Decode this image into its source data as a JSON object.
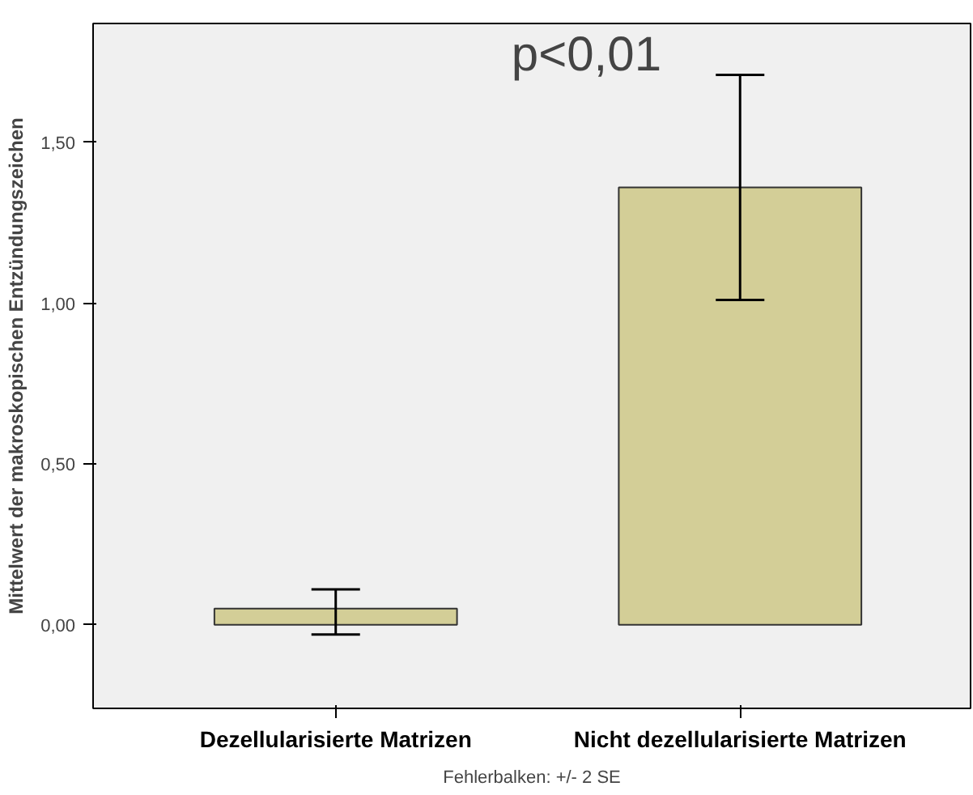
{
  "chart_data": {
    "type": "bar",
    "ylabel": "Mittelwert der makroskopischen Entzündungszeichen",
    "categories": [
      "Dezellularisierte Matrizen",
      "Nicht dezellularisierte Matrizen"
    ],
    "values": [
      0.05,
      1.36
    ],
    "errors": [
      [
        -0.03,
        0.11
      ],
      [
        1.01,
        1.71
      ]
    ],
    "color": "#d3ce97",
    "ylim": [
      -0.26,
      1.87
    ],
    "yticks": [
      {
        "value": 0,
        "label": "0,00"
      },
      {
        "value": 0.5,
        "label": "0,50"
      },
      {
        "value": 1,
        "label": "1,00"
      },
      {
        "value": 1.5,
        "label": "1,50"
      }
    ],
    "grid": false,
    "annotations": [
      "p<0,01",
      "Fehlerbalken: +/- 2 SE"
    ]
  }
}
